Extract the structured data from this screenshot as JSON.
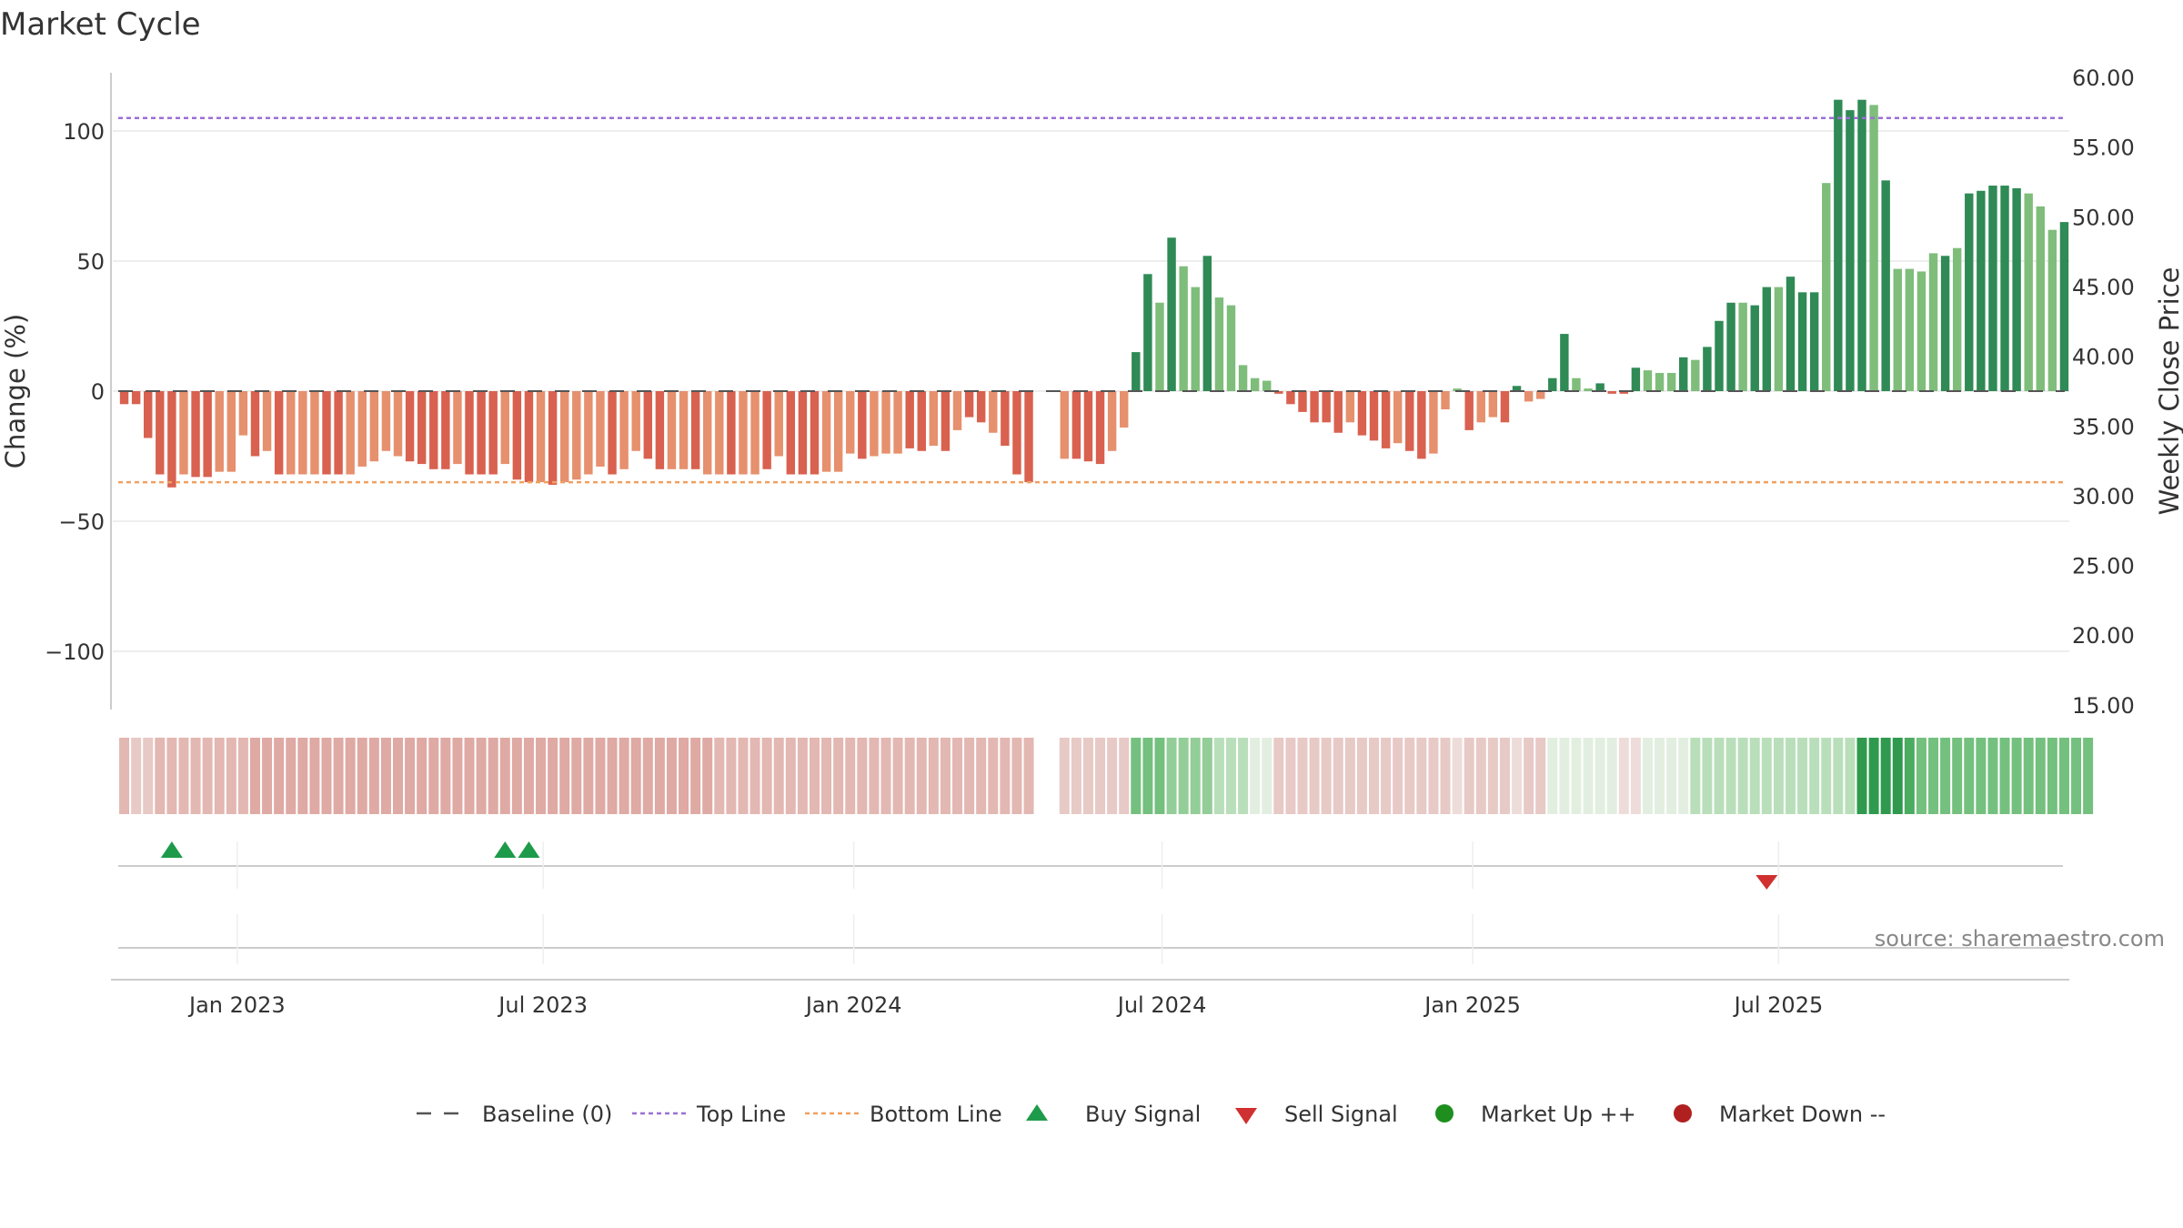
{
  "chart_data": {
    "type": "bar",
    "title": "Market Cycle",
    "ylabel": "Change (%)",
    "y2label": "Weekly Close Price",
    "ylim": [
      -122,
      122
    ],
    "y2lim": [
      15,
      60
    ],
    "yticks": [
      100,
      50,
      0,
      -50,
      -100
    ],
    "yticklabels": [
      "100",
      "50",
      "0",
      "−50",
      "−100"
    ],
    "y2ticks": [
      60,
      55,
      50,
      45,
      40,
      35,
      30,
      25,
      20,
      15
    ],
    "y2ticklabels": [
      "60.00",
      "55.00",
      "50.00",
      "45.00",
      "40.00",
      "35.00",
      "30.00",
      "25.00",
      "20.00",
      "15.00"
    ],
    "xticklabels": [
      "Jan 2023",
      "Jul 2023",
      "Jan 2024",
      "Jul 2024",
      "Jan 2025",
      "Jul 2025"
    ],
    "top_line": 105,
    "bottom_line": -35,
    "baseline": 0,
    "change_values": [
      -5,
      -5,
      -18,
      -32,
      -37,
      -32,
      -33,
      -33,
      -31,
      -31,
      -17,
      -25,
      -23,
      -32,
      -32,
      -32,
      -32,
      -32,
      -32,
      -32,
      -29,
      -27,
      -23,
      -25,
      -27,
      -28,
      -30,
      -30,
      -28,
      -32,
      -32,
      -32,
      -28,
      -34,
      -35,
      -35,
      -36,
      -35,
      -34,
      -32,
      -29,
      -32,
      -30,
      -23,
      -26,
      -30,
      -30,
      -30,
      -30,
      -32,
      -32,
      -32,
      -32,
      -32,
      -30,
      -25,
      -32,
      -32,
      -32,
      -31,
      -31,
      -24,
      -26,
      -25,
      -24,
      -24,
      -22,
      -23,
      -21,
      -23,
      -15,
      -10,
      -12,
      -16,
      -21,
      -32,
      -35,
      0,
      0,
      -26,
      -26,
      -27,
      -28,
      -23,
      -14,
      15,
      45,
      34,
      59,
      48,
      40,
      52,
      36,
      33,
      10,
      5,
      4,
      -1,
      -5,
      -8,
      -12,
      -12,
      -16,
      -12,
      -17,
      -19,
      -22,
      -20,
      -23,
      -26,
      -24,
      -7,
      1,
      -15,
      -12,
      -10,
      -12,
      2,
      -4,
      -3,
      5,
      22,
      5,
      1,
      3,
      -1,
      -1,
      9,
      8,
      7,
      7,
      13,
      12,
      17,
      27,
      34,
      34,
      33,
      40,
      40,
      44,
      38,
      38,
      80,
      112,
      108,
      112,
      110,
      81,
      47,
      47,
      46,
      53,
      52,
      55,
      76,
      77,
      79,
      79,
      78,
      76,
      71,
      62,
      65
    ],
    "regime_colors": [
      "#d9614f",
      "#e6906e",
      "#2f8a55",
      "#7fbd7b"
    ],
    "bar_regime": [
      0,
      0,
      0,
      0,
      0,
      1,
      0,
      0,
      1,
      1,
      1,
      0,
      1,
      0,
      1,
      1,
      1,
      0,
      0,
      1,
      1,
      1,
      1,
      1,
      0,
      0,
      0,
      0,
      1,
      0,
      0,
      0,
      1,
      0,
      0,
      1,
      0,
      1,
      1,
      1,
      1,
      0,
      1,
      1,
      0,
      0,
      1,
      1,
      0,
      1,
      1,
      0,
      1,
      1,
      0,
      1,
      0,
      0,
      0,
      1,
      1,
      1,
      0,
      1,
      1,
      1,
      0,
      0,
      1,
      0,
      1,
      0,
      0,
      1,
      0,
      0,
      0,
      0,
      0,
      1,
      0,
      0,
      0,
      1,
      1,
      2,
      2,
      3,
      2,
      3,
      3,
      2,
      3,
      3,
      3,
      3,
      3,
      0,
      0,
      0,
      0,
      0,
      0,
      1,
      0,
      0,
      0,
      1,
      0,
      0,
      1,
      1,
      3,
      0,
      1,
      1,
      0,
      2,
      1,
      1,
      2,
      2,
      3,
      3,
      2,
      0,
      0,
      2,
      3,
      3,
      3,
      2,
      3,
      2,
      2,
      2,
      3,
      2,
      2,
      3,
      2,
      2,
      2,
      3,
      2,
      2,
      2,
      3,
      2,
      3,
      3,
      3,
      3,
      2,
      3,
      2,
      2,
      2,
      2,
      2,
      3,
      3,
      3,
      2
    ],
    "strip_colors": [
      "#e7c9c6",
      "#e3b7b2",
      "#dfa9a4",
      "#eedcda",
      "#e2efe0",
      "#b9dfba",
      "#93cd97",
      "#74c07e",
      "#4aac5f",
      "#2f9a4e"
    ],
    "strip_levels": [
      1,
      0,
      0,
      1,
      1,
      1,
      1,
      1,
      1,
      1,
      1,
      2,
      2,
      2,
      2,
      2,
      2,
      2,
      2,
      2,
      2,
      2,
      2,
      2,
      2,
      2,
      2,
      2,
      2,
      2,
      2,
      2,
      2,
      2,
      2,
      2,
      2,
      2,
      2,
      2,
      2,
      2,
      2,
      2,
      2,
      2,
      2,
      2,
      2,
      2,
      1,
      1,
      1,
      1,
      1,
      1,
      1,
      1,
      1,
      1,
      1,
      1,
      1,
      1,
      1,
      1,
      1,
      1,
      1,
      1,
      1,
      1,
      1,
      1,
      1,
      1,
      1,
      -1,
      -1,
      0,
      0,
      0,
      0,
      0,
      0,
      7,
      7,
      7,
      6,
      6,
      6,
      6,
      5,
      5,
      5,
      4,
      4,
      0,
      0,
      0,
      0,
      0,
      0,
      0,
      0,
      0,
      0,
      0,
      0,
      0,
      0,
      0,
      3,
      0,
      0,
      0,
      0,
      3,
      0,
      0,
      4,
      4,
      4,
      4,
      4,
      4,
      3,
      3,
      4,
      4,
      4,
      4,
      5,
      5,
      5,
      5,
      5,
      5,
      5,
      5,
      5,
      5,
      5,
      5,
      5,
      5,
      9,
      9,
      9,
      9,
      8,
      7,
      7,
      7,
      7,
      7,
      7,
      7,
      7,
      7,
      7,
      7,
      7,
      7,
      7,
      7
    ],
    "buy_signals": [
      4,
      32,
      34
    ],
    "sell_signals": [
      138
    ],
    "legend": [
      "Baseline (0)",
      "Top Line",
      "Bottom Line",
      "Buy Signal",
      "Sell Signal",
      "Market Up ++",
      "Market Down --"
    ],
    "legend_placement": "bottom",
    "series_colors": {
      "baseline": "#555555",
      "top_line": "#9b6fd6",
      "bottom_line": "#f0a060",
      "buy": "#1e9b4a",
      "sell": "#d03030",
      "market_up": "#1e8f1e",
      "market_down": "#b02020"
    },
    "grid": true
  },
  "source": "source: sharemaestro.com"
}
